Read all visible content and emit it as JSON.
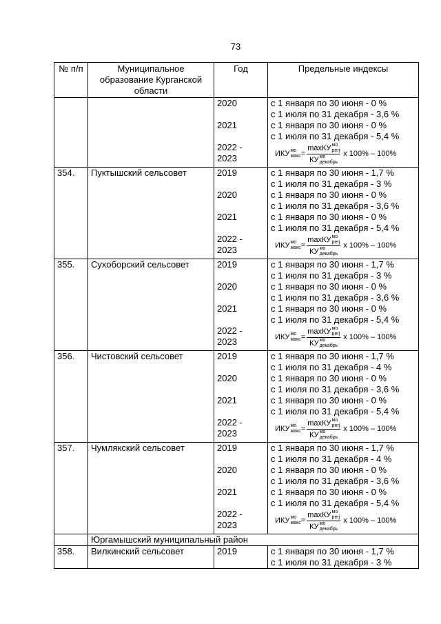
{
  "page_number": "73",
  "table": {
    "header": [
      "№ п/п",
      "Муниципальное образование Курганской области",
      "Год",
      "Предельные индексы"
    ],
    "rows": [
      {
        "entries": [
          {
            "year": "2020",
            "limits": [
              "с 1 января по 30 июня - 0 %",
              "с 1 июля по 31 декабря - 3,6 %"
            ]
          },
          {
            "year": "2021",
            "limits": [
              "с 1 января по 30 июня - 0 %",
              "с 1 июля по 31 декабря - 5,4 %"
            ]
          },
          {
            "year": "2022 -\n2023",
            "formula": {
              "lhs": "ИКУ",
              "lhs_sup": "мо",
              "lhs_sub": "макс",
              "eq": "=",
              "num": "maxКУ",
              "num_sup": "мо",
              "num_sub": "perj",
              "den": "КУ",
              "den_sup": "мо",
              "den_sub": "декабрь",
              "tail": "x 100% – 100%"
            }
          }
        ]
      },
      {
        "number": "354.",
        "name": "Пуктышский сельсовет",
        "entries": [
          {
            "year": "2019",
            "limits": [
              "с 1 января по 30 июня - 1,7 %",
              "с 1 июля по 31 декабря - 3 %"
            ]
          },
          {
            "year": "2020",
            "limits": [
              "с 1 января по 30 июня - 0 %",
              "с 1 июля по 31 декабря - 3,6 %"
            ]
          },
          {
            "year": "2021",
            "limits": [
              "с 1 января по 30 июня - 0 %",
              "с 1 июля по 31 декабря - 5,4 %"
            ]
          },
          {
            "year": "2022 -\n2023",
            "formula": {
              "lhs": "ИКУ",
              "lhs_sup": "мо",
              "lhs_sub": "макс",
              "eq": "=",
              "num": "maxКУ",
              "num_sup": "мо",
              "num_sub": "perj",
              "den": "КУ",
              "den_sup": "мо",
              "den_sub": "декабрь",
              "tail": "x 100% – 100%"
            }
          }
        ]
      },
      {
        "number": "355.",
        "name": "Сухоборский сельсовет",
        "entries": [
          {
            "year": "2019",
            "limits": [
              "с 1 января по 30 июня - 1,7 %",
              "с 1 июля по 31 декабря - 3 %"
            ]
          },
          {
            "year": "2020",
            "limits": [
              "с 1 января по 30 июня - 0 %",
              "с 1 июля по 31 декабря - 3,6 %"
            ]
          },
          {
            "year": "2021",
            "limits": [
              "с 1 января по 30 июня - 0 %",
              "с 1 июля по 31 декабря - 5,4 %"
            ]
          },
          {
            "year": "2022 -\n2023",
            "formula": {
              "lhs": "ИКУ",
              "lhs_sup": "мо",
              "lhs_sub": "макс",
              "eq": "=",
              "num": "maxКУ",
              "num_sup": "мо",
              "num_sub": "perj",
              "den": "КУ",
              "den_sup": "мо",
              "den_sub": "декабрь",
              "tail": "x 100% – 100%"
            }
          }
        ]
      },
      {
        "number": "356.",
        "name": "Чистовский сельсовет",
        "entries": [
          {
            "year": "2019",
            "limits": [
              "с 1 января по 30 июня - 1,7 %",
              "с 1 июля по 31 декабря - 4 %"
            ]
          },
          {
            "year": "2020",
            "limits": [
              "с 1 января по 30 июня - 0 %",
              "с 1 июля по 31 декабря - 3,6 %"
            ]
          },
          {
            "year": "2021",
            "limits": [
              "с 1 января по 30 июня - 0 %",
              "с 1 июля по 31 декабря - 5,4 %"
            ]
          },
          {
            "year": "2022 -\n2023",
            "formula": {
              "lhs": "ИКУ",
              "lhs_sup": "мо",
              "lhs_sub": "макс",
              "eq": "=",
              "num": "maxКУ",
              "num_sup": "мо",
              "num_sub": "perj",
              "den": "КУ",
              "den_sup": "мо",
              "den_sub": "декабрь",
              "tail": "x 100% – 100%"
            }
          }
        ]
      },
      {
        "number": "357.",
        "name": "Чумлякский сельсовет",
        "entries": [
          {
            "year": "2019",
            "limits": [
              "с 1 января по 30 июня - 1,7 %",
              "с 1 июля по 31 декабря - 4 %"
            ]
          },
          {
            "year": "2020",
            "limits": [
              "с 1 января по 30 июня - 0 %",
              "с 1 июля по 31 декабря - 3,6 %"
            ]
          },
          {
            "year": "2021",
            "limits": [
              "с 1 января по 30 июня - 0 %",
              "с 1 июля по 31 декабря - 5,4 %"
            ]
          },
          {
            "year": "2022 -\n2023",
            "formula": {
              "lhs": "ИКУ",
              "lhs_sup": "мо",
              "lhs_sub": "макс",
              "eq": "=",
              "num": "maxКУ",
              "num_sup": "мо",
              "num_sub": "perj",
              "den": "КУ",
              "den_sup": "мо",
              "den_sub": "декабрь",
              "tail": "x 100% – 100%"
            }
          }
        ]
      },
      {
        "district": "Юргамышский муниципальный район"
      },
      {
        "number": "358.",
        "name": "Вилкинский сельсовет",
        "entries": [
          {
            "year": "2019",
            "limits": [
              "с 1 января по 30 июня - 1,7 %",
              "с 1 июля по 31 декабря - 3 %"
            ]
          }
        ]
      }
    ]
  }
}
